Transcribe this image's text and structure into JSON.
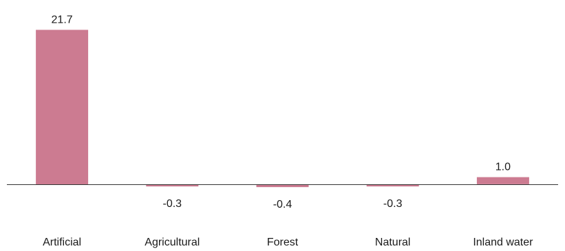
{
  "chart_data": {
    "type": "bar",
    "categories": [
      "Artificial",
      "Agricultural",
      "Forest",
      "Natural",
      "Inland water"
    ],
    "values": [
      21.7,
      -0.3,
      -0.4,
      -0.3,
      1.0
    ],
    "value_labels": [
      "21.7",
      "-0.3",
      "-0.4",
      "-0.3",
      "1.0"
    ],
    "title": "",
    "xlabel": "",
    "ylabel": "",
    "ylim": [
      -0.4,
      21.7
    ],
    "grid": false,
    "legend": "none",
    "colors": {
      "bar": "#cc7b91",
      "baseline": "#333333",
      "text": "#1a1a1a"
    }
  }
}
